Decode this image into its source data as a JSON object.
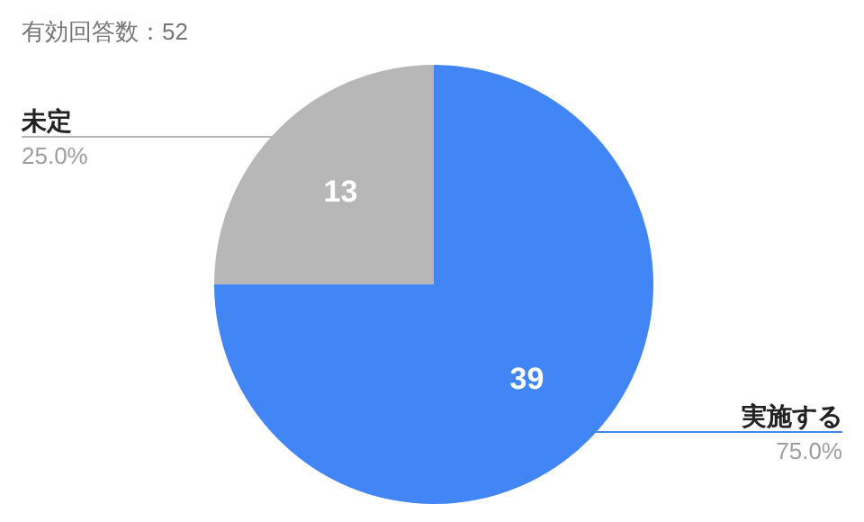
{
  "chart_data": {
    "type": "pie",
    "title": "有効回答数：52",
    "categories": [
      "実施する",
      "未定"
    ],
    "values": [
      39,
      13
    ],
    "colors": [
      "#4285f4",
      "#b7b7b7"
    ],
    "data_labels": true,
    "annotations": [
      "75.0%",
      "25.0%"
    ]
  }
}
